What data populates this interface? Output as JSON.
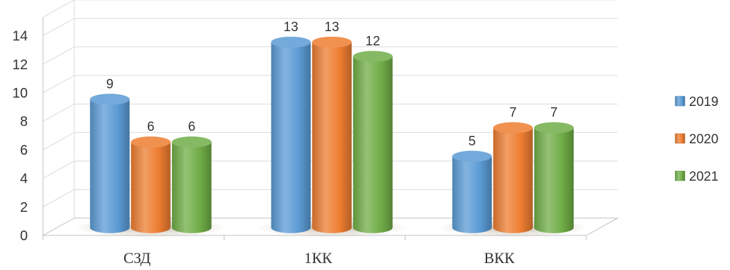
{
  "chart_data": {
    "type": "bar",
    "categories": [
      "СЗД",
      "1КК",
      "ВКК"
    ],
    "series": [
      {
        "name": "2019",
        "values": [
          9,
          13,
          5
        ]
      },
      {
        "name": "2020",
        "values": [
          6,
          13,
          7
        ]
      },
      {
        "name": "2021",
        "values": [
          6,
          12,
          7
        ]
      }
    ],
    "ylim": [
      0,
      14
    ],
    "yticks": [
      0,
      2,
      4,
      6,
      8,
      10,
      12,
      14
    ],
    "grid": true,
    "legend_position": "right",
    "style": "3d-cylinder",
    "colors": {
      "2019": "#5b9bd5",
      "2020": "#ed7d31",
      "2021": "#70ad47"
    }
  }
}
